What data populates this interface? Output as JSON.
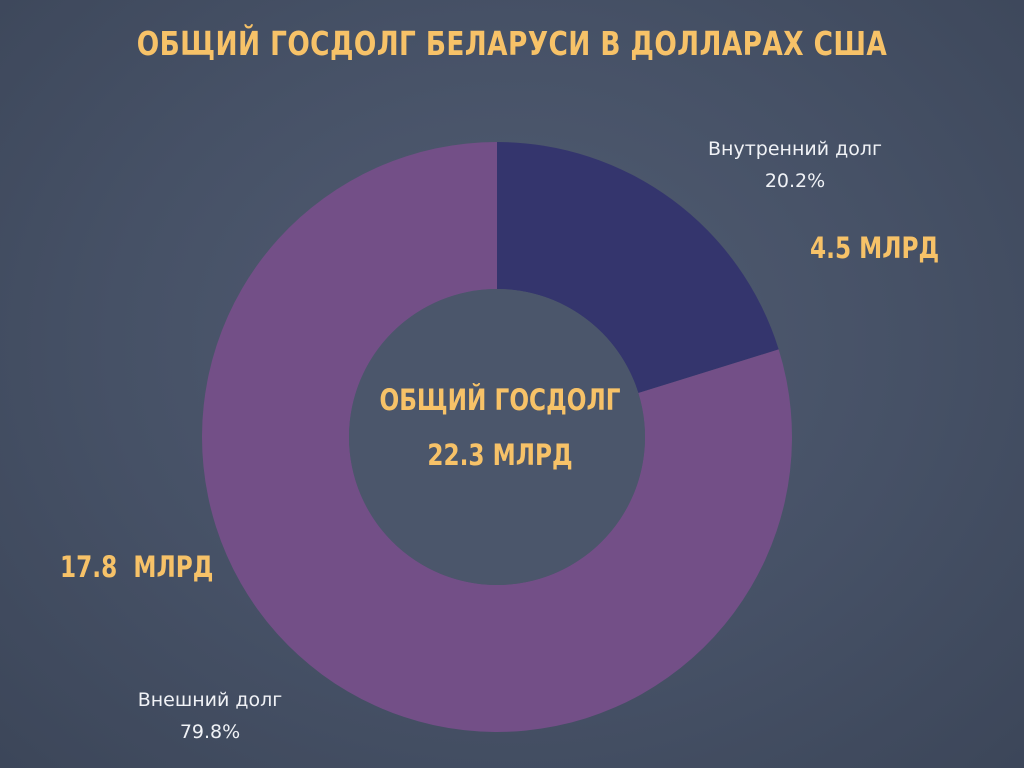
{
  "colors": {
    "accent_text": "#f7c268",
    "label_text": "#f0f2f6",
    "domestic_slice": "#34356d",
    "external_slice": "#734f87",
    "hole": "#4b566b"
  },
  "chart_data": {
    "type": "pie",
    "donut": true,
    "title": "ОБЩИЙ ГОСДОЛГ БЕЛАРУСИ В ДОЛЛАРАХ США",
    "center_label": "ОБЩИЙ ГОСДОЛГ",
    "center_value": "22.3 МЛРД",
    "slices": [
      {
        "name": "Внутренний долг",
        "percent": 20.2,
        "percent_label": "20.2%",
        "value": 4.5,
        "value_label": "4.5 МЛРД",
        "color": "#34356d"
      },
      {
        "name": "Внешний долг",
        "percent": 79.8,
        "percent_label": "79.8%",
        "value": 17.8,
        "value_label": "17.8  МЛРД",
        "color": "#734f87"
      }
    ]
  }
}
